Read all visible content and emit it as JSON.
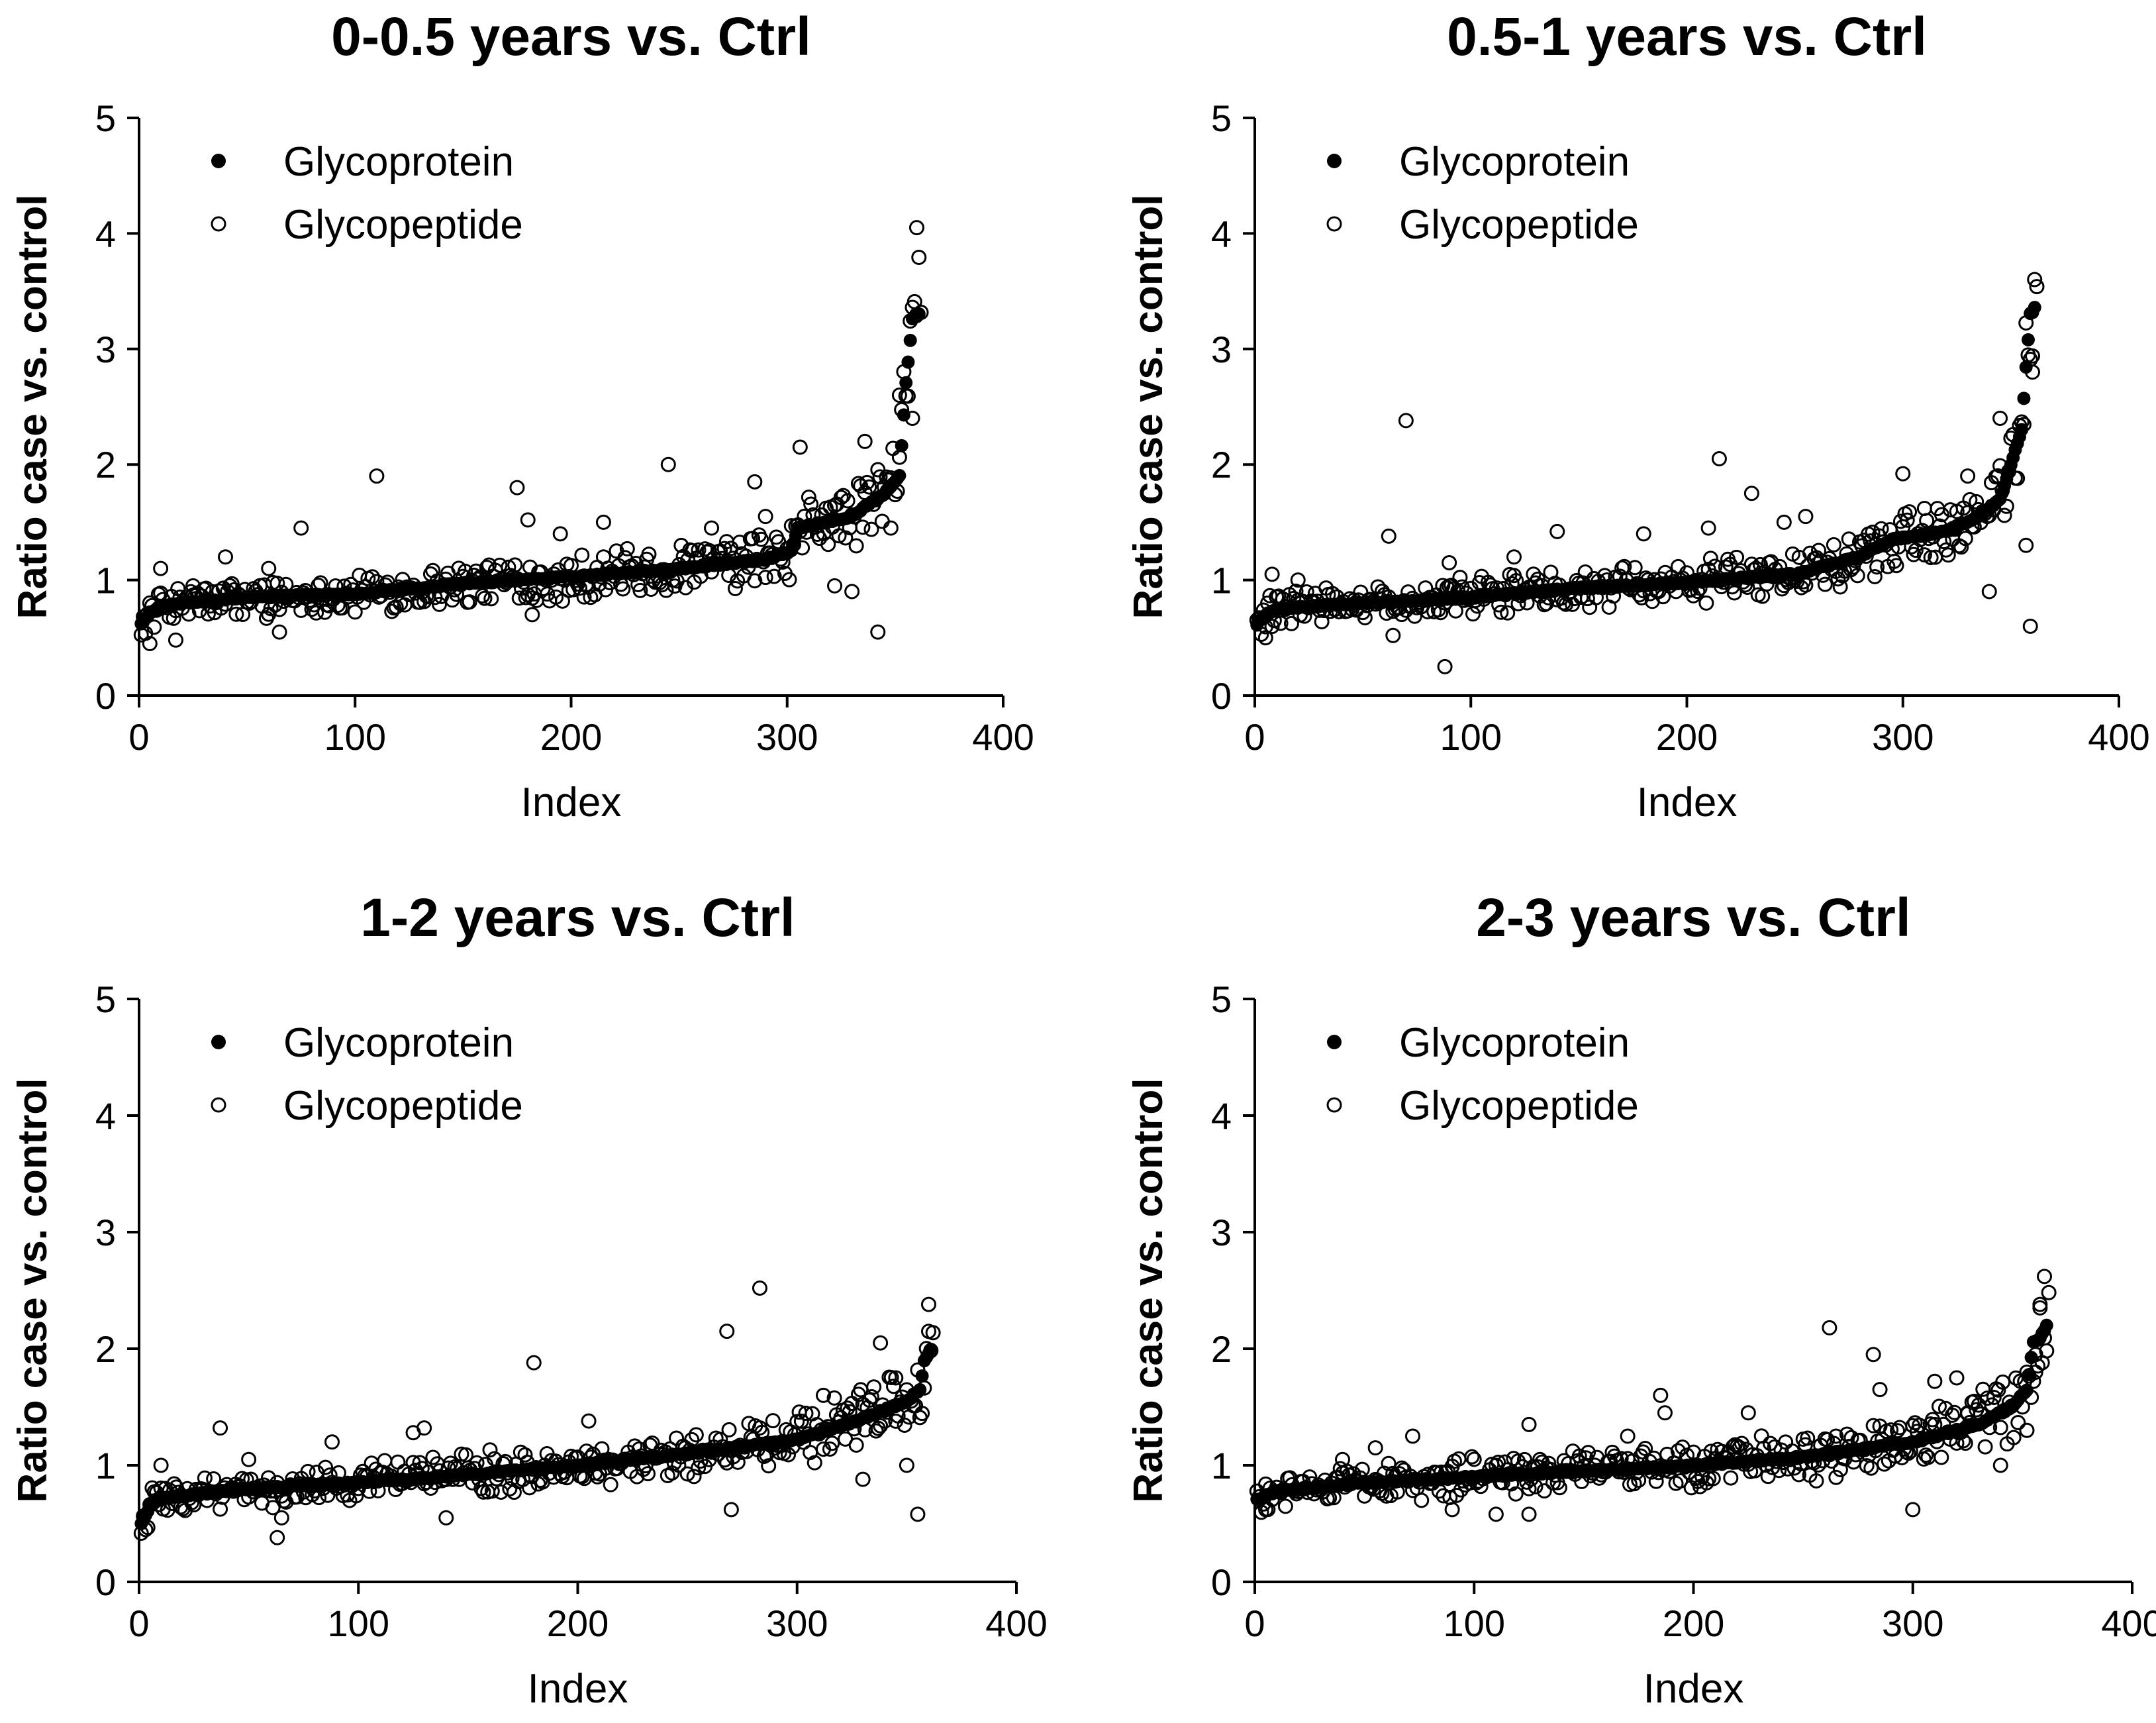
{
  "chart_data": [
    {
      "type": "scatter",
      "title": "0-0.5 years vs. Ctrl",
      "xlabel": "Index",
      "ylabel": "Ratio case vs. control",
      "xlim": [
        0,
        400
      ],
      "ylim": [
        0,
        5
      ],
      "xticks": [
        "0",
        "100",
        "200",
        "300",
        "400"
      ],
      "yticks": [
        "0",
        "1",
        "2",
        "3",
        "4",
        "5"
      ],
      "grid": false,
      "legend": "top-left",
      "series": [
        {
          "name": "Glycoprotein",
          "marker": "filled-circle",
          "color": "#000000",
          "anchors": [
            [
              1,
              0.62
            ],
            [
              5,
              0.72
            ],
            [
              10,
              0.77
            ],
            [
              20,
              0.8
            ],
            [
              50,
              0.85
            ],
            [
              100,
              0.88
            ],
            [
              150,
              0.97
            ],
            [
              200,
              1.03
            ],
            [
              250,
              1.1
            ],
            [
              290,
              1.18
            ],
            [
              302,
              1.25
            ],
            [
              305,
              1.45
            ],
            [
              330,
              1.55
            ],
            [
              345,
              1.75
            ],
            [
              352,
              1.9
            ],
            [
              355,
              2.7
            ],
            [
              358,
              3.27
            ],
            [
              361,
              3.3
            ]
          ]
        },
        {
          "name": "Glycopeptide",
          "marker": "open-circle",
          "color": "#000000",
          "points": [
            [
              5,
              0.45
            ],
            [
              10,
              1.1
            ],
            [
              17,
              0.48
            ],
            [
              25,
              0.95
            ],
            [
              40,
              1.2
            ],
            [
              60,
              1.1
            ],
            [
              65,
              0.55
            ],
            [
              75,
              1.45
            ],
            [
              110,
              1.9
            ],
            [
              160,
              0.98
            ],
            [
              175,
              1.8
            ],
            [
              180,
              1.52
            ],
            [
              182,
              0.7
            ],
            [
              195,
              1.4
            ],
            [
              215,
              1.5
            ],
            [
              245,
              2.0
            ],
            [
              265,
              1.45
            ],
            [
              285,
              1.85
            ],
            [
              290,
              1.55
            ],
            [
              306,
              2.15
            ],
            [
              322,
              0.95
            ],
            [
              330,
              0.9
            ],
            [
              336,
              2.2
            ],
            [
              342,
              0.55
            ],
            [
              348,
              1.45
            ],
            [
              352,
              2.6
            ],
            [
              358,
              2.4
            ],
            [
              360,
              4.05
            ]
          ]
        }
      ]
    },
    {
      "type": "scatter",
      "title": "0.5-1 years vs. Ctrl",
      "xlabel": "Index",
      "ylabel": "Ratio case vs. control",
      "xlim": [
        0,
        400
      ],
      "ylim": [
        0,
        5
      ],
      "xticks": [
        "0",
        "100",
        "200",
        "300",
        "400"
      ],
      "yticks": [
        "0",
        "1",
        "2",
        "3",
        "4",
        "5"
      ],
      "grid": false,
      "legend": "top-left",
      "series": [
        {
          "name": "Glycoprotein",
          "marker": "filled-circle",
          "color": "#000000",
          "anchors": [
            [
              1,
              0.62
            ],
            [
              5,
              0.7
            ],
            [
              10,
              0.75
            ],
            [
              50,
              0.8
            ],
            [
              100,
              0.85
            ],
            [
              150,
              0.93
            ],
            [
              200,
              0.98
            ],
            [
              250,
              1.05
            ],
            [
              280,
              1.2
            ],
            [
              295,
              1.35
            ],
            [
              320,
              1.42
            ],
            [
              335,
              1.55
            ],
            [
              345,
              1.7
            ],
            [
              350,
              2.0
            ],
            [
              355,
              2.3
            ],
            [
              357,
              2.85
            ],
            [
              359,
              3.3
            ],
            [
              361,
              3.35
            ]
          ]
        },
        {
          "name": "Glycopeptide",
          "marker": "open-circle",
          "color": "#000000",
          "points": [
            [
              5,
              0.5
            ],
            [
              8,
              1.05
            ],
            [
              20,
              1.0
            ],
            [
              62,
              1.38
            ],
            [
              64,
              0.52
            ],
            [
              70,
              2.38
            ],
            [
              88,
              0.25
            ],
            [
              90,
              1.15
            ],
            [
              120,
              1.2
            ],
            [
              140,
              1.42
            ],
            [
              180,
              1.4
            ],
            [
              210,
              1.45
            ],
            [
              215,
              2.05
            ],
            [
              230,
              1.75
            ],
            [
              245,
              1.5
            ],
            [
              255,
              1.55
            ],
            [
              300,
              1.92
            ],
            [
              310,
              1.62
            ],
            [
              330,
              1.9
            ],
            [
              340,
              0.9
            ],
            [
              345,
              2.4
            ],
            [
              357,
              1.3
            ],
            [
              359,
              0.6
            ],
            [
              360,
              2.8
            ]
          ]
        }
      ]
    },
    {
      "type": "scatter",
      "title": "1-2 years vs. Ctrl",
      "xlabel": "Index",
      "ylabel": "Ratio case vs. control",
      "xlim": [
        0,
        400
      ],
      "ylim": [
        0,
        5
      ],
      "xticks": [
        "0",
        "100",
        "200",
        "300",
        "400"
      ],
      "yticks": [
        "0",
        "1",
        "2",
        "3",
        "4",
        "5"
      ],
      "grid": false,
      "legend": "top-left",
      "series": [
        {
          "name": "Glycoprotein",
          "marker": "filled-circle",
          "color": "#000000",
          "anchors": [
            [
              1,
              0.5
            ],
            [
              5,
              0.65
            ],
            [
              10,
              0.72
            ],
            [
              50,
              0.8
            ],
            [
              100,
              0.85
            ],
            [
              150,
              0.92
            ],
            [
              200,
              1.0
            ],
            [
              250,
              1.1
            ],
            [
              300,
              1.22
            ],
            [
              330,
              1.4
            ],
            [
              350,
              1.55
            ],
            [
              356,
              1.65
            ],
            [
              358,
              1.9
            ],
            [
              361,
              2.0
            ]
          ]
        },
        {
          "name": "Glycopeptide",
          "marker": "open-circle",
          "color": "#000000",
          "points": [
            [
              10,
              1.0
            ],
            [
              37,
              1.32
            ],
            [
              50,
              1.05
            ],
            [
              63,
              0.38
            ],
            [
              65,
              0.55
            ],
            [
              88,
              1.2
            ],
            [
              125,
              1.28
            ],
            [
              130,
              1.32
            ],
            [
              140,
              0.55
            ],
            [
              180,
              1.88
            ],
            [
              205,
              1.38
            ],
            [
              268,
              2.15
            ],
            [
              270,
              0.62
            ],
            [
              283,
              2.52
            ],
            [
              312,
              1.6
            ],
            [
              330,
              0.88
            ],
            [
              338,
              2.05
            ],
            [
              345,
              1.75
            ],
            [
              350,
              1.0
            ],
            [
              355,
              0.58
            ],
            [
              360,
              2.38
            ]
          ]
        }
      ]
    },
    {
      "type": "scatter",
      "title": "2-3 years vs. Ctrl",
      "xlabel": "Index",
      "ylabel": "Ratio case vs. control",
      "xlim": [
        0,
        400
      ],
      "ylim": [
        0,
        5
      ],
      "xticks": [
        "0",
        "100",
        "200",
        "300",
        "400"
      ],
      "yticks": [
        "0",
        "1",
        "2",
        "3",
        "4",
        "5"
      ],
      "grid": false,
      "legend": "top-left",
      "series": [
        {
          "name": "Glycoprotein",
          "marker": "filled-circle",
          "color": "#000000",
          "anchors": [
            [
              1,
              0.7
            ],
            [
              10,
              0.78
            ],
            [
              50,
              0.85
            ],
            [
              100,
              0.9
            ],
            [
              150,
              0.95
            ],
            [
              200,
              1.0
            ],
            [
              250,
              1.07
            ],
            [
              300,
              1.2
            ],
            [
              330,
              1.35
            ],
            [
              345,
              1.5
            ],
            [
              352,
              1.65
            ],
            [
              355,
              2.05
            ],
            [
              358,
              2.1
            ],
            [
              361,
              2.2
            ]
          ]
        },
        {
          "name": "Glycopeptide",
          "marker": "open-circle",
          "color": "#000000",
          "points": [
            [
              5,
              0.62
            ],
            [
              40,
              1.05
            ],
            [
              55,
              1.15
            ],
            [
              72,
              1.25
            ],
            [
              90,
              0.62
            ],
            [
              110,
              0.58
            ],
            [
              125,
              0.58
            ],
            [
              125,
              1.35
            ],
            [
              170,
              1.25
            ],
            [
              185,
              1.6
            ],
            [
              187,
              1.45
            ],
            [
              225,
              1.45
            ],
            [
              262,
              2.18
            ],
            [
              265,
              1.25
            ],
            [
              282,
              1.95
            ],
            [
              285,
              1.65
            ],
            [
              300,
              0.62
            ],
            [
              310,
              1.72
            ],
            [
              320,
              1.75
            ],
            [
              325,
              1.45
            ],
            [
              340,
              1.0
            ],
            [
              352,
              1.3
            ],
            [
              356,
              1.95
            ],
            [
              358,
              2.35
            ],
            [
              360,
              2.62
            ]
          ]
        }
      ]
    }
  ]
}
